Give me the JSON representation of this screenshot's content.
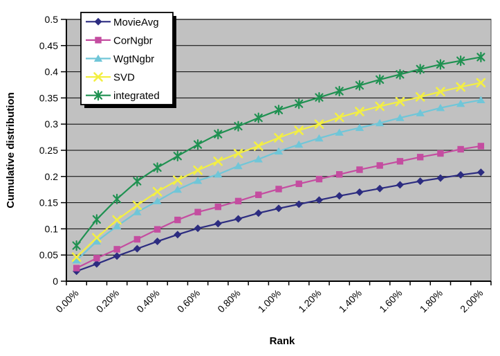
{
  "chart_data": {
    "type": "line",
    "title": "",
    "xlabel": "Rank",
    "ylabel": "Cumulative distribution",
    "x_categories": [
      "0.00%",
      "0.10%",
      "0.20%",
      "0.30%",
      "0.40%",
      "0.50%",
      "0.60%",
      "0.70%",
      "0.80%",
      "0.90%",
      "1.00%",
      "1.10%",
      "1.20%",
      "1.30%",
      "1.40%",
      "1.50%",
      "1.60%",
      "1.70%",
      "1.80%",
      "1.90%",
      "2.00%"
    ],
    "x_axis_labels_shown": [
      "0.00%",
      "0.20%",
      "0.40%",
      "0.60%",
      "0.80%",
      "1.00%",
      "1.20%",
      "1.40%",
      "1.60%",
      "1.80%",
      "2.00%"
    ],
    "y_tick_labels": [
      "0",
      "0.05",
      "0.1",
      "0.15",
      "0.2",
      "0.25",
      "0.3",
      "0.35",
      "0.4",
      "0.45",
      "0.5"
    ],
    "ylim": [
      0,
      0.5
    ],
    "grid": "horizontal",
    "legend_position": "top-left-inside",
    "colors": {
      "page_bg": "#ffffff",
      "plot_bg": "#c1c1c1",
      "plot_border": "#808080",
      "gridline": "#000000",
      "axis": "#000000",
      "text": "#000000",
      "legend_bg": "#ffffff",
      "legend_border": "#000000",
      "legend_shadow": "#000000"
    },
    "series": [
      {
        "name": "MovieAvg",
        "color": "#2c2c80",
        "marker": "diamond",
        "values": [
          0.019,
          0.033,
          0.048,
          0.062,
          0.076,
          0.089,
          0.101,
          0.11,
          0.119,
          0.13,
          0.139,
          0.147,
          0.155,
          0.163,
          0.17,
          0.177,
          0.184,
          0.191,
          0.197,
          0.203,
          0.208
        ]
      },
      {
        "name": "CorNgbr",
        "color": "#c44da0",
        "marker": "square",
        "values": [
          0.025,
          0.044,
          0.061,
          0.08,
          0.099,
          0.117,
          0.132,
          0.142,
          0.153,
          0.165,
          0.176,
          0.186,
          0.195,
          0.204,
          0.213,
          0.221,
          0.229,
          0.237,
          0.244,
          0.252,
          0.258
        ]
      },
      {
        "name": "WgtNgbr",
        "color": "#70c6d8",
        "marker": "triangle",
        "values": [
          0.04,
          0.076,
          0.105,
          0.132,
          0.153,
          0.175,
          0.192,
          0.204,
          0.22,
          0.233,
          0.248,
          0.261,
          0.273,
          0.284,
          0.293,
          0.302,
          0.312,
          0.321,
          0.331,
          0.339,
          0.346
        ]
      },
      {
        "name": "SVD",
        "color": "#f3ef43",
        "marker": "x",
        "values": [
          0.046,
          0.083,
          0.117,
          0.145,
          0.171,
          0.193,
          0.212,
          0.229,
          0.244,
          0.258,
          0.274,
          0.288,
          0.3,
          0.313,
          0.324,
          0.334,
          0.343,
          0.352,
          0.362,
          0.371,
          0.379
        ]
      },
      {
        "name": "integrated",
        "color": "#1f9151",
        "marker": "asterisk",
        "values": [
          0.068,
          0.118,
          0.157,
          0.191,
          0.217,
          0.239,
          0.261,
          0.281,
          0.296,
          0.312,
          0.327,
          0.339,
          0.351,
          0.363,
          0.374,
          0.385,
          0.395,
          0.405,
          0.414,
          0.421,
          0.428
        ]
      }
    ]
  }
}
